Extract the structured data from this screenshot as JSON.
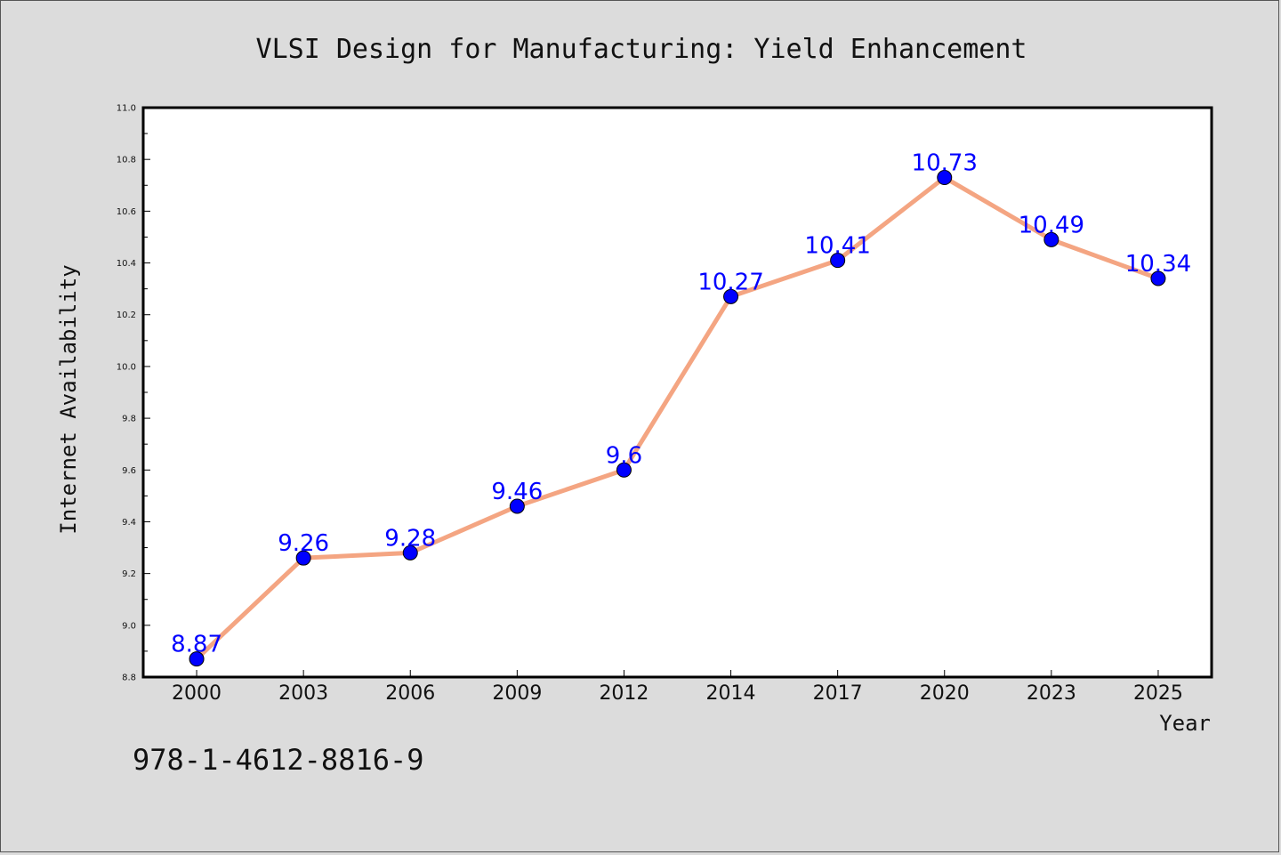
{
  "chart_data": {
    "type": "line",
    "title": "VLSI Design for Manufacturing: Yield Enhancement",
    "xlabel": "Year",
    "ylabel": "Internet Availability",
    "categories": [
      "2000",
      "2003",
      "2006",
      "2009",
      "2012",
      "2014",
      "2017",
      "2020",
      "2023",
      "2025"
    ],
    "series": [
      {
        "values": [
          8.87,
          9.26,
          9.28,
          9.46,
          9.6,
          10.27,
          10.41,
          10.73,
          10.49,
          10.34
        ],
        "labels": [
          "8.87",
          "9.26",
          "9.28",
          "9.46",
          "9.6",
          "10.27",
          "10.41",
          "10.73",
          "10.49",
          "10.34"
        ],
        "line_color": "#f4a582",
        "marker_color": "#0000ff"
      }
    ],
    "ylim": [
      8.8,
      11.0
    ],
    "yticks": [
      "8.8",
      "9.0",
      "9.2",
      "9.4",
      "9.6",
      "9.8",
      "10.0",
      "10.2",
      "10.4",
      "10.6",
      "10.8",
      "11.0"
    ],
    "grid": false,
    "legend": "none"
  },
  "footer": {
    "isbn": "978-1-4612-8816-9"
  },
  "colors": {
    "background": "#dcdcdc",
    "plot_background": "#ffffff",
    "label_color": "#0000ff"
  }
}
